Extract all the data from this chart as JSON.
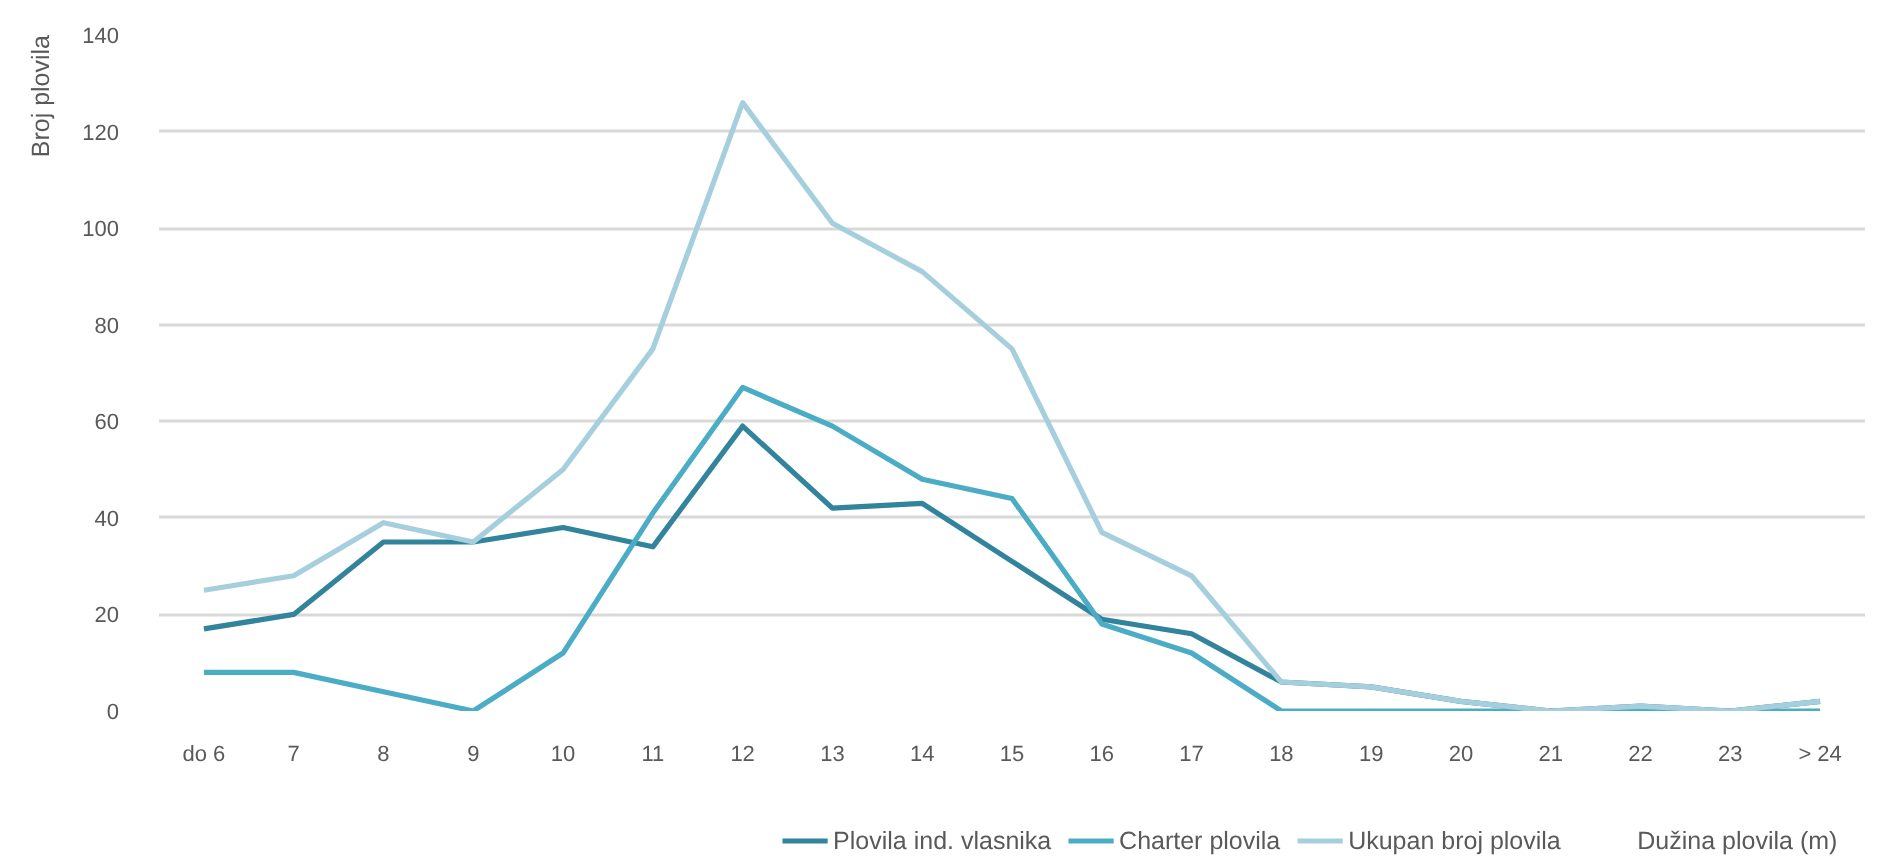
{
  "chart_data": {
    "type": "line",
    "xlabel": "Dužina plovila (m)",
    "ylabel": "Broj plovila",
    "categories": [
      "do 6",
      "7",
      "8",
      "9",
      "10",
      "11",
      "12",
      "13",
      "14",
      "15",
      "16",
      "17",
      "18",
      "19",
      "20",
      "21",
      "22",
      "23",
      "> 24"
    ],
    "ylim": [
      0,
      140
    ],
    "yticks": [
      0,
      20,
      40,
      60,
      80,
      100,
      120,
      140
    ],
    "grid": "y",
    "legend": "bottom",
    "series": [
      {
        "name": "Plovila ind. vlasnika",
        "color": "#31849b",
        "values": [
          17,
          20,
          35,
          35,
          38,
          34,
          59,
          42,
          43,
          31,
          19,
          16,
          6,
          5,
          2,
          0,
          1,
          0,
          2
        ]
      },
      {
        "name": "Charter plovila",
        "color": "#4bacc6",
        "values": [
          8,
          8,
          4,
          0,
          12,
          41,
          67,
          59,
          48,
          44,
          18,
          12,
          0,
          0,
          0,
          0,
          0,
          0,
          0
        ]
      },
      {
        "name": "Ukupan broj plovila",
        "color": "#a5cfdc",
        "values": [
          25,
          28,
          39,
          35,
          50,
          75,
          126,
          101,
          91,
          75,
          37,
          28,
          6,
          5,
          2,
          0,
          1,
          0,
          2
        ]
      }
    ]
  }
}
